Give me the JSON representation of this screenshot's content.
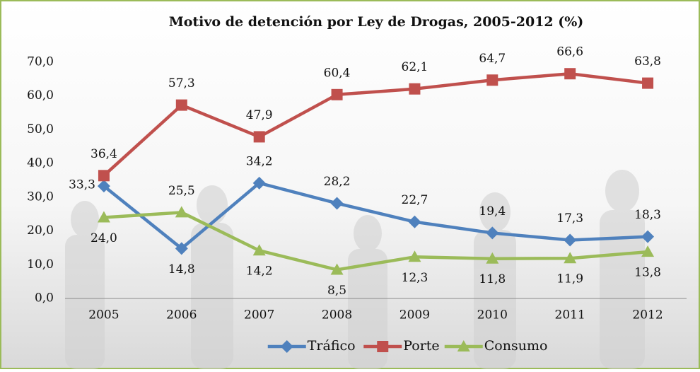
{
  "chart_data": {
    "type": "line",
    "title": "Motivo de detención por Ley de Drogas, 2005-2012 (%)",
    "categories": [
      "2005",
      "2006",
      "2007",
      "2008",
      "2009",
      "2010",
      "2011",
      "2012"
    ],
    "series": [
      {
        "name": "Tráfico",
        "color": "#4f81bd",
        "marker": "diamond",
        "values": [
          33.3,
          14.8,
          34.2,
          28.2,
          22.7,
          19.4,
          17.3,
          18.3
        ],
        "value_labels": [
          "33,3",
          "14,8",
          "34,2",
          "28,2",
          "22,7",
          "19,4",
          "17,3",
          "18,3"
        ]
      },
      {
        "name": "Porte",
        "color": "#c0504d",
        "marker": "square",
        "values": [
          36.4,
          57.3,
          47.9,
          60.4,
          62.1,
          64.7,
          66.6,
          63.8
        ],
        "value_labels": [
          "36,4",
          "57,3",
          "47,9",
          "60,4",
          "62,1",
          "64,7",
          "66,6",
          "63,8"
        ]
      },
      {
        "name": "Consumo",
        "color": "#9bbb59",
        "marker": "triangle",
        "values": [
          24.0,
          25.5,
          14.2,
          8.5,
          12.3,
          11.8,
          11.9,
          13.8
        ],
        "value_labels": [
          "24,0",
          "25,5",
          "14,2",
          "8,5",
          "12,3",
          "11,8",
          "11,9",
          "13,8"
        ]
      }
    ],
    "ylim": [
      0,
      70
    ],
    "yticks": [
      {
        "value": 0,
        "label": "0,0"
      },
      {
        "value": 10,
        "label": "10,0"
      },
      {
        "value": 20,
        "label": "20,0"
      },
      {
        "value": 30,
        "label": "30,0"
      },
      {
        "value": 40,
        "label": "40,0"
      },
      {
        "value": 50,
        "label": "50,0"
      },
      {
        "value": 60,
        "label": "60,0"
      },
      {
        "value": 70,
        "label": "70,0"
      }
    ],
    "grid": false,
    "legend": "bottom"
  }
}
